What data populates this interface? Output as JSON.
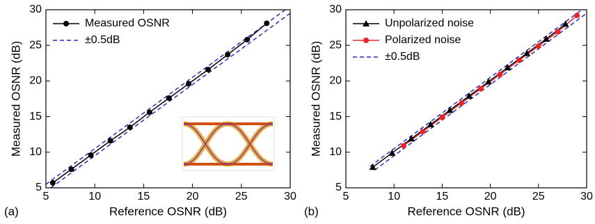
{
  "chart_data": [
    {
      "type": "line",
      "label": "(a)",
      "xlabel": "Reference OSNR (dB)",
      "ylabel": "Measured OSNR (dB)",
      "xlim": [
        5,
        30
      ],
      "ylim": [
        5,
        30
      ],
      "xticks": [
        5,
        10,
        15,
        20,
        25,
        30
      ],
      "yticks": [
        5,
        10,
        15,
        20,
        25,
        30
      ],
      "series": [
        {
          "name": "Measured OSNR",
          "color": "#000000",
          "marker": "circle",
          "x": [
            5.7,
            7.6,
            9.6,
            11.6,
            13.6,
            15.6,
            17.6,
            19.6,
            21.6,
            23.6,
            25.6,
            27.6
          ],
          "values": [
            5.7,
            7.6,
            9.6,
            11.6,
            13.5,
            15.6,
            17.6,
            19.6,
            21.6,
            23.7,
            25.8,
            28.1
          ]
        },
        {
          "name": "±0.5dB",
          "color": "#2a2ab8",
          "dash": true,
          "x": [
            5,
            29.5
          ],
          "values": [
            5.5,
            30
          ]
        },
        {
          "color": "#2a2ab8",
          "dash": true,
          "x": [
            5.5,
            30
          ],
          "values": [
            5,
            29.5
          ]
        }
      ]
    },
    {
      "type": "line",
      "label": "(b)",
      "xlabel": "Reference OSNR (dB)",
      "ylabel": "Measured OSNR (dB)",
      "xlim": [
        5,
        30
      ],
      "ylim": [
        5,
        30
      ],
      "xticks": [
        5,
        10,
        15,
        20,
        25,
        30
      ],
      "yticks": [
        5,
        10,
        15,
        20,
        25,
        30
      ],
      "series": [
        {
          "name": "Unpolarized noise",
          "color": "#000000",
          "marker": "triangle",
          "x": [
            7.8,
            9.8,
            11.8,
            13.8,
            15.8,
            17.8,
            19.8,
            21.8,
            23.8,
            25.8,
            27.8
          ],
          "values": [
            7.9,
            9.9,
            11.9,
            13.9,
            15.9,
            17.9,
            19.9,
            21.9,
            23.9,
            25.9,
            28.0
          ]
        },
        {
          "name": "Polarized noise",
          "color": "#e8262a",
          "marker": "circle",
          "x": [
            11,
            13,
            15,
            17,
            19,
            21,
            23,
            25,
            27,
            29
          ],
          "values": [
            10.9,
            12.9,
            14.9,
            16.9,
            18.9,
            20.9,
            22.9,
            24.9,
            26.9,
            29.2
          ]
        },
        {
          "name": "±0.5dB",
          "color": "#2a2ab8",
          "dash": true,
          "x": [
            7.5,
            29.5
          ],
          "values": [
            8,
            30
          ]
        },
        {
          "color": "#2a2ab8",
          "dash": true,
          "x": [
            8,
            30
          ],
          "values": [
            7.5,
            29.5
          ]
        }
      ]
    }
  ]
}
